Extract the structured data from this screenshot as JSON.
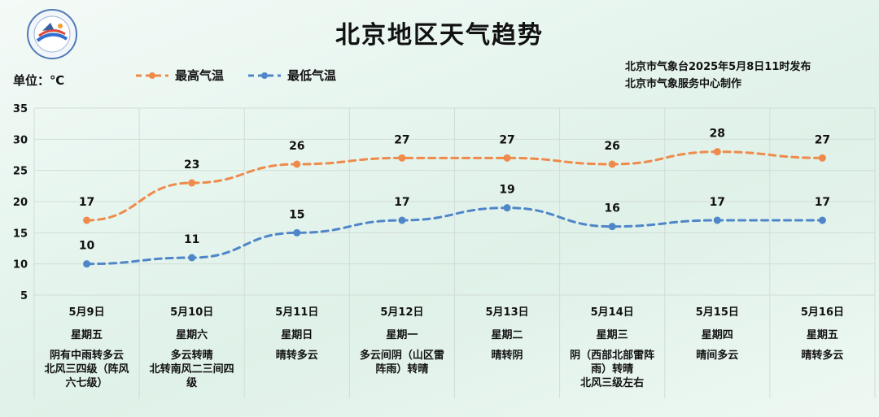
{
  "header": {
    "title": "北京地区天气趋势",
    "unit_label": "单位：℃",
    "publisher_line1": "北京市气象台2025年5月8日11时发布",
    "publisher_line2": "北京市气象服务中心制作"
  },
  "colors": {
    "high": "#ef8a4a",
    "low": "#4f86c9",
    "grid": "#d3dcd8"
  },
  "legend": {
    "high_label": "最高气温",
    "low_label": "最低气温"
  },
  "forecast": [
    {
      "date": "5月9日",
      "weekday": "星期五",
      "weather": [
        "阴有中雨转多云",
        "北风三四级（阵风",
        "六七级）"
      ]
    },
    {
      "date": "5月10日",
      "weekday": "星期六",
      "weather": [
        "多云转晴",
        "北转南风二三间四",
        "级"
      ]
    },
    {
      "date": "5月11日",
      "weekday": "星期日",
      "weather": [
        "晴转多云"
      ]
    },
    {
      "date": "5月12日",
      "weekday": "星期一",
      "weather": [
        "多云间阴（山区雷",
        "阵雨）转晴"
      ]
    },
    {
      "date": "5月13日",
      "weekday": "星期二",
      "weather": [
        "晴转阴"
      ]
    },
    {
      "date": "5月14日",
      "weekday": "星期三",
      "weather": [
        "阴（西部北部雷阵",
        "雨）转晴",
        "北风三级左右"
      ]
    },
    {
      "date": "5月15日",
      "weekday": "星期四",
      "weather": [
        "晴间多云"
      ]
    },
    {
      "date": "5月16日",
      "weekday": "星期五",
      "weather": [
        "晴转多云"
      ]
    }
  ],
  "chart_data": {
    "type": "line",
    "categories": [
      "5月9日",
      "5月10日",
      "5月11日",
      "5月12日",
      "5月13日",
      "5月14日",
      "5月15日",
      "5月16日"
    ],
    "series": [
      {
        "name": "最高气温",
        "values": [
          17,
          23,
          26,
          27,
          27,
          26,
          28,
          27
        ]
      },
      {
        "name": "最低气温",
        "values": [
          10,
          11,
          15,
          17,
          19,
          16,
          17,
          17
        ]
      }
    ],
    "title": "北京地区天气趋势",
    "ylabel": "单位：℃",
    "yticks": [
      5,
      10,
      15,
      20,
      25,
      30,
      35
    ],
    "ylim": [
      5,
      35
    ],
    "grid": true,
    "legend": "top-left",
    "line_style": "dashed"
  }
}
